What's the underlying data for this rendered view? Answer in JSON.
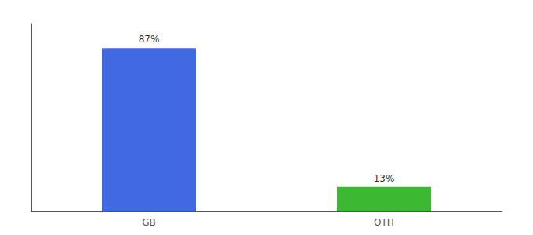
{
  "chart_data": {
    "type": "bar",
    "categories": [
      "GB",
      "OTH"
    ],
    "values": [
      87,
      13
    ],
    "value_labels": [
      "87%",
      "13%"
    ],
    "colors": [
      "#4169e1",
      "#3cb832"
    ],
    "ylim": [
      0,
      100
    ],
    "yticks": [],
    "tick_labels": "x",
    "grid": false,
    "data_labels": true
  }
}
